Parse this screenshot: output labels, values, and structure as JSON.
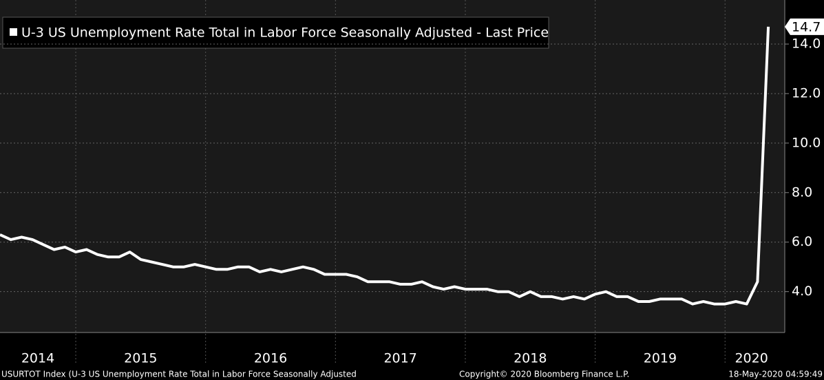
{
  "chart_data": {
    "type": "line",
    "legend": "U-3 US Unemployment Rate Total in Labor Force Seasonally Adjusted - Last Price",
    "year_labels": [
      "2014",
      "2015",
      "2016",
      "2017",
      "2018",
      "2019",
      "2020"
    ],
    "series": [
      {
        "name": "U-3 US Unemployment Rate Total in Labor Force Seasonally Adjusted - Last Price",
        "color": "#ffffff",
        "values": [
          6.3,
          6.1,
          6.2,
          6.1,
          5.9,
          5.7,
          5.8,
          5.6,
          5.7,
          5.5,
          5.4,
          5.4,
          5.6,
          5.3,
          5.2,
          5.1,
          5.0,
          5.0,
          5.1,
          5.0,
          4.9,
          4.9,
          5.0,
          5.0,
          4.8,
          4.9,
          4.8,
          4.9,
          5.0,
          4.9,
          4.7,
          4.7,
          4.7,
          4.6,
          4.4,
          4.4,
          4.4,
          4.3,
          4.3,
          4.4,
          4.2,
          4.1,
          4.2,
          4.1,
          4.1,
          4.1,
          4.0,
          4.0,
          3.8,
          4.0,
          3.8,
          3.8,
          3.7,
          3.8,
          3.7,
          3.9,
          4.0,
          3.8,
          3.8,
          3.6,
          3.6,
          3.7,
          3.7,
          3.7,
          3.5,
          3.6,
          3.5,
          3.5,
          3.6,
          3.5,
          4.4,
          14.7
        ]
      }
    ],
    "last_label": "14.7",
    "ylim": [
      2.35,
      15.78
    ],
    "yticks": [
      {
        "value": 4,
        "label": "4.0"
      },
      {
        "value": 6,
        "label": "6.0"
      },
      {
        "value": 8,
        "label": "8.0"
      },
      {
        "value": 10,
        "label": "10.0"
      },
      {
        "value": 12,
        "label": "12.0"
      },
      {
        "value": 14,
        "label": "14.0"
      }
    ],
    "grid": true,
    "footer_left": "USURTOT Index (U-3 US Unemployment Rate Total in Labor Force Seasonally Adjusted",
    "footer_center": "Copyright© 2020 Bloomberg Finance L.P.",
    "footer_right": "18-May-2020 04:59:49"
  }
}
